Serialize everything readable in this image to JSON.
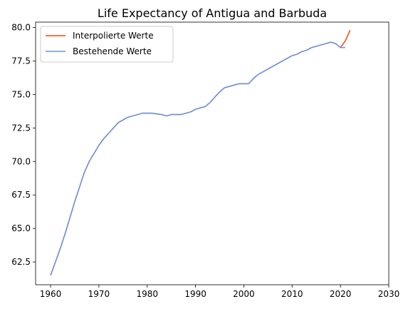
{
  "chart_data": {
    "type": "line",
    "title": "Life Expectancy of Antigua and Barbuda",
    "xlabel": "",
    "ylabel": "",
    "xlim": [
      1956.9,
      2030
    ],
    "ylim": [
      60.8,
      80.4
    ],
    "xticks": [
      1960,
      1970,
      1980,
      1990,
      2000,
      2010,
      2020,
      2030
    ],
    "yticks": [
      62.5,
      65.0,
      67.5,
      70.0,
      72.5,
      75.0,
      77.5,
      80.0
    ],
    "xtick_labels": [
      "1960",
      "1970",
      "1980",
      "1990",
      "2000",
      "2010",
      "2020",
      "2030"
    ],
    "ytick_labels": [
      "62.5",
      "65.0",
      "67.5",
      "70.0",
      "72.5",
      "75.0",
      "77.5",
      "80.0"
    ],
    "grid": false,
    "legend_position": "top-left",
    "series": [
      {
        "name": "Interpolierte Werte",
        "color": "#ff4500",
        "x": [
          1960,
          1961,
          1962,
          1963,
          1964,
          1965,
          1966,
          1967,
          1968,
          1969,
          1970,
          1971,
          1972,
          1973,
          1974,
          1975,
          1976,
          1977,
          1978,
          1979,
          1980,
          1981,
          1982,
          1983,
          1984,
          1985,
          1986,
          1987,
          1988,
          1989,
          1990,
          1991,
          1992,
          1993,
          1994,
          1995,
          1996,
          1997,
          1998,
          1999,
          2000,
          2001,
          2002,
          2003,
          2004,
          2005,
          2006,
          2007,
          2008,
          2009,
          2010,
          2011,
          2012,
          2013,
          2014,
          2015,
          2016,
          2017,
          2018,
          2019,
          2020,
          2021,
          2022
        ],
        "values": [
          61.5,
          62.5,
          63.5,
          64.6,
          65.8,
          67.0,
          68.1,
          69.2,
          70.0,
          70.6,
          71.2,
          71.7,
          72.1,
          72.5,
          72.9,
          73.1,
          73.3,
          73.4,
          73.5,
          73.6,
          73.6,
          73.6,
          73.55,
          73.5,
          73.4,
          73.5,
          73.5,
          73.5,
          73.6,
          73.7,
          73.9,
          74.0,
          74.1,
          74.4,
          74.8,
          75.2,
          75.5,
          75.6,
          75.7,
          75.8,
          75.8,
          75.8,
          76.2,
          76.5,
          76.7,
          76.9,
          77.1,
          77.3,
          77.5,
          77.7,
          77.9,
          78.0,
          78.2,
          78.3,
          78.5,
          78.6,
          78.7,
          78.8,
          78.9,
          78.8,
          78.5,
          79.0,
          79.8
        ]
      },
      {
        "name": "Bestehende Werte",
        "color": "#6495ed",
        "x": [
          1960,
          1961,
          1962,
          1963,
          1964,
          1965,
          1966,
          1967,
          1968,
          1969,
          1970,
          1971,
          1972,
          1973,
          1974,
          1975,
          1976,
          1977,
          1978,
          1979,
          1980,
          1981,
          1982,
          1983,
          1984,
          1985,
          1986,
          1987,
          1988,
          1989,
          1990,
          1991,
          1992,
          1993,
          1994,
          1995,
          1996,
          1997,
          1998,
          1999,
          2000,
          2001,
          2002,
          2003,
          2004,
          2005,
          2006,
          2007,
          2008,
          2009,
          2010,
          2011,
          2012,
          2013,
          2014,
          2015,
          2016,
          2017,
          2018,
          2019,
          2020,
          2021
        ],
        "values": [
          61.5,
          62.5,
          63.5,
          64.6,
          65.8,
          67.0,
          68.1,
          69.2,
          70.0,
          70.6,
          71.2,
          71.7,
          72.1,
          72.5,
          72.9,
          73.1,
          73.3,
          73.4,
          73.5,
          73.6,
          73.6,
          73.6,
          73.55,
          73.5,
          73.4,
          73.5,
          73.5,
          73.5,
          73.6,
          73.7,
          73.9,
          74.0,
          74.1,
          74.4,
          74.8,
          75.2,
          75.5,
          75.6,
          75.7,
          75.8,
          75.8,
          75.8,
          76.2,
          76.5,
          76.7,
          76.9,
          77.1,
          77.3,
          77.5,
          77.7,
          77.9,
          78.0,
          78.2,
          78.3,
          78.5,
          78.6,
          78.7,
          78.8,
          78.9,
          78.8,
          78.5,
          78.5
        ]
      }
    ]
  }
}
